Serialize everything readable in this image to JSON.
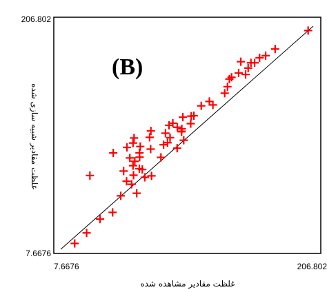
{
  "chart_data": {
    "type": "scatter",
    "panel_label": "(B)",
    "xlabel": "غلظت مقادیر مشاهده شده",
    "ylabel": "غلظت مقادیر شبیه سازی شده",
    "x_tick_labels": [
      "7.6676",
      "206.802"
    ],
    "y_tick_labels": [
      "7.6676",
      "206.802"
    ],
    "xlim": [
      7.6676,
      206.802
    ],
    "ylim": [
      7.6676,
      206.802
    ],
    "grid": false,
    "reference_line": "y = x",
    "marker": "plus",
    "marker_color": "#ff0000",
    "points": [
      [
        18.7,
        12.9
      ],
      [
        28.1,
        22.3
      ],
      [
        38.7,
        34.6
      ],
      [
        48.6,
        40.6
      ],
      [
        55.0,
        55.4
      ],
      [
        30.7,
        73.5
      ],
      [
        49.1,
        93.7
      ],
      [
        57.3,
        77.5
      ],
      [
        59.6,
        68.4
      ],
      [
        63.6,
        65.7
      ],
      [
        67.6,
        57.7
      ],
      [
        65.1,
        73.8
      ],
      [
        64.7,
        82.3
      ],
      [
        62.2,
        89.2
      ],
      [
        69.7,
        79.6
      ],
      [
        74.0,
        71.9
      ],
      [
        72.0,
        78.9
      ],
      [
        66.1,
        86.2
      ],
      [
        69.8,
        93.7
      ],
      [
        79.3,
        73.2
      ],
      [
        69.9,
        89.9
      ],
      [
        59.9,
        98.6
      ],
      [
        70.4,
        99.4
      ],
      [
        64.7,
        102.5
      ],
      [
        65.5,
        107.0
      ],
      [
        78.6,
        97.1
      ],
      [
        77.8,
        107.6
      ],
      [
        78.8,
        113.3
      ],
      [
        86.7,
        89.7
      ],
      [
        90.3,
        111.3
      ],
      [
        91.9,
        102.8
      ],
      [
        88.8,
        101.0
      ],
      [
        93.9,
        107.3
      ],
      [
        99.5,
        97.9
      ],
      [
        93.1,
        118.3
      ],
      [
        99.6,
        116.6
      ],
      [
        103.0,
        113.0
      ],
      [
        104.7,
        105.0
      ],
      [
        102.9,
        112.6
      ],
      [
        103.2,
        115.2
      ],
      [
        96.1,
        120.2
      ],
      [
        104.0,
        125.6
      ],
      [
        110.2,
        119.8
      ],
      [
        110.6,
        126.5
      ],
      [
        112.7,
        126.9
      ],
      [
        118.5,
        135.7
      ],
      [
        124.9,
        139.6
      ],
      [
        127.7,
        136.5
      ],
      [
        137.0,
        147.0
      ],
      [
        139.2,
        152.8
      ],
      [
        140.7,
        159.6
      ],
      [
        142.4,
        161.2
      ],
      [
        148.0,
        165.0
      ],
      [
        153.5,
        163.7
      ],
      [
        149.7,
        175.1
      ],
      [
        155.5,
        169.4
      ],
      [
        157.7,
        174.1
      ],
      [
        160.6,
        174.1
      ],
      [
        164.5,
        178.6
      ],
      [
        169.3,
        180.5
      ],
      [
        176.8,
        186.4
      ],
      [
        202.8,
        202.9
      ]
    ]
  }
}
